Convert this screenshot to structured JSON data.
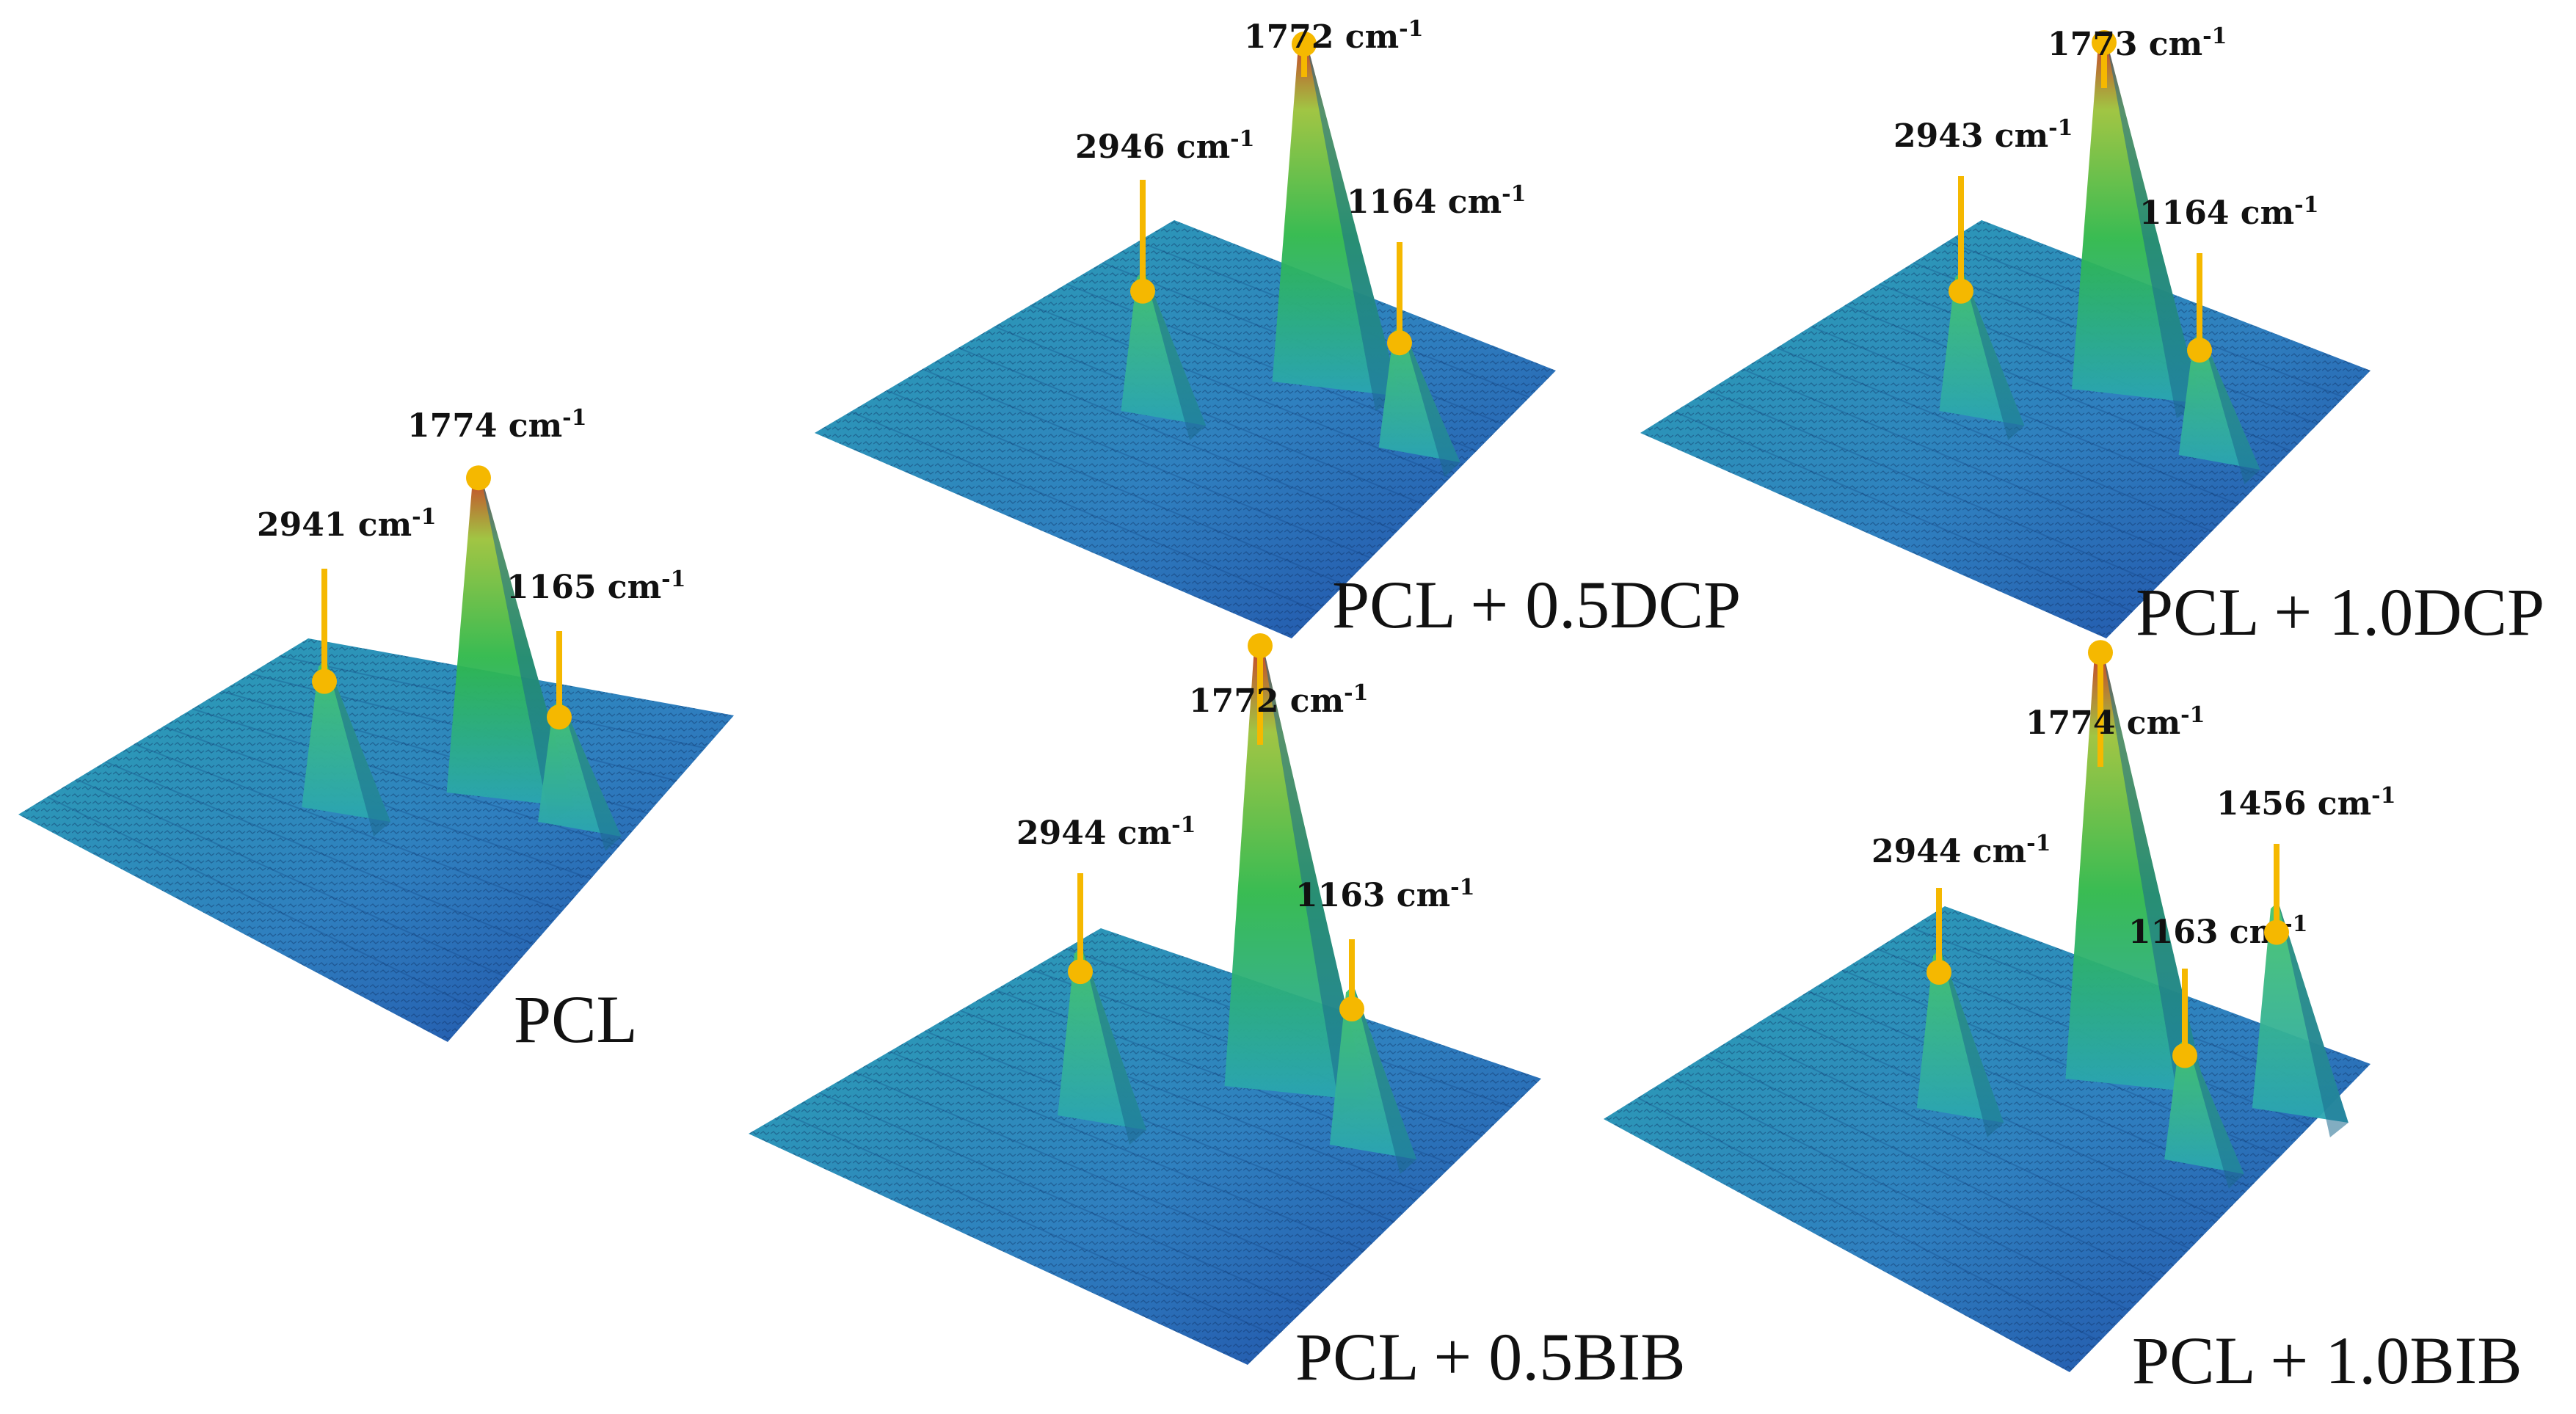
{
  "colors": {
    "marker": "#f5b800",
    "surface_low": "#1f4aa6",
    "surface_mid": "#2aa5b3",
    "surface_green": "#2fb84a",
    "surface_peak": "#c8321b"
  },
  "chart_data": [
    {
      "type": "surface",
      "sample": "PCL",
      "peaks": [
        {
          "label": "2941 cm",
          "unit_sup": "-1",
          "wavenumber": 2941,
          "rel_height": 0.36
        },
        {
          "label": "1774 cm",
          "unit_sup": "-1",
          "wavenumber": 1774,
          "rel_height": 0.78
        },
        {
          "label": "1165 cm",
          "unit_sup": "-1",
          "wavenumber": 1165,
          "rel_height": 0.3
        }
      ]
    },
    {
      "type": "surface",
      "sample": "PCL + 0.5DCP",
      "peaks": [
        {
          "label": "2946 cm",
          "unit_sup": "-1",
          "wavenumber": 2946,
          "rel_height": 0.32
        },
        {
          "label": "1772 cm",
          "unit_sup": "-1",
          "wavenumber": 1772,
          "rel_height": 0.78
        },
        {
          "label": "1164 cm",
          "unit_sup": "-1",
          "wavenumber": 1164,
          "rel_height": 0.28
        }
      ]
    },
    {
      "type": "surface",
      "sample": "PCL + 1.0DCP",
      "peaks": [
        {
          "label": "2943 cm",
          "unit_sup": "-1",
          "wavenumber": 2943,
          "rel_height": 0.32
        },
        {
          "label": "1773 cm",
          "unit_sup": "-1",
          "wavenumber": 1773,
          "rel_height": 0.8
        },
        {
          "label": "1164 cm",
          "unit_sup": "-1",
          "wavenumber": 1164,
          "rel_height": 0.28
        }
      ]
    },
    {
      "type": "surface",
      "sample": "PCL + 0.5BIB",
      "peaks": [
        {
          "label": "2944 cm",
          "unit_sup": "-1",
          "wavenumber": 2944,
          "rel_height": 0.36
        },
        {
          "label": "1772 cm",
          "unit_sup": "-1",
          "wavenumber": 1772,
          "rel_height": 0.95
        },
        {
          "label": "1163 cm",
          "unit_sup": "-1",
          "wavenumber": 1163,
          "rel_height": 0.34
        }
      ]
    },
    {
      "type": "surface",
      "sample": "PCL + 1.0BIB",
      "peaks": [
        {
          "label": "2944 cm",
          "unit_sup": "-1",
          "wavenumber": 2944,
          "rel_height": 0.34
        },
        {
          "label": "1774 cm",
          "unit_sup": "-1",
          "wavenumber": 1774,
          "rel_height": 0.92
        },
        {
          "label": "1163 cm",
          "unit_sup": "-1",
          "wavenumber": 1163,
          "rel_height": 0.26
        },
        {
          "label": "1456 cm",
          "unit_sup": "-1",
          "wavenumber": 1456,
          "rel_height": 0.44
        }
      ]
    }
  ]
}
